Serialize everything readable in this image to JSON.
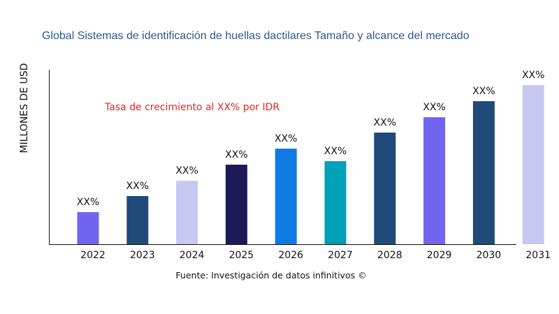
{
  "chart_data": {
    "type": "bar",
    "title": "Global Sistemas de identificación de huellas dactilares Tamaño y alcance del mercado",
    "xlabel": "",
    "ylabel": "MILLONES DE USD",
    "categories": [
      "2022",
      "2023",
      "2024",
      "2025",
      "2026",
      "2027",
      "2028",
      "2029",
      "2030",
      "2031"
    ],
    "values": [
      46,
      69,
      91,
      114,
      137,
      119,
      160,
      182,
      205,
      228
    ],
    "data_labels": [
      "XX%",
      "XX%",
      "XX%",
      "XX%",
      "XX%",
      "XX%",
      "XX%",
      "XX%",
      "XX%",
      "XX%"
    ],
    "colors": [
      "#7165f0",
      "#1f4a7a",
      "#c8c9f0",
      "#1e1a58",
      "#0e7be4",
      "#00a0b8",
      "#1f4a7a",
      "#7165f0",
      "#1f4a7a",
      "#c8c9f0"
    ],
    "ylim": [
      0,
      250
    ],
    "grid": false,
    "legend": "none",
    "annotation": "Tasa de crecimiento al XX% por IDR",
    "source": "Fuente: Investigación de datos infinitivos ©"
  }
}
